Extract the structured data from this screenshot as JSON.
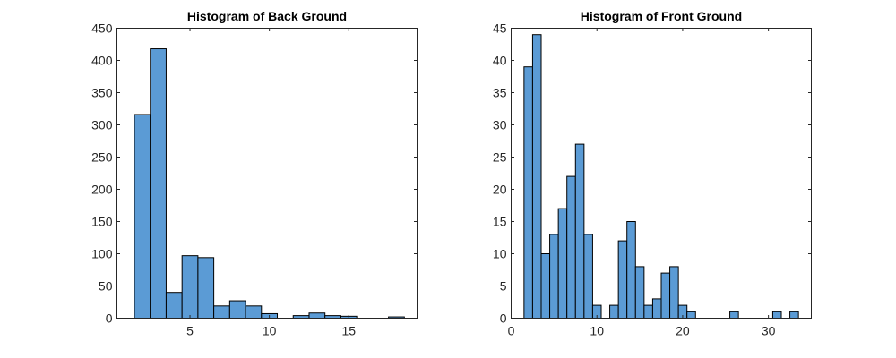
{
  "chart_data": [
    {
      "type": "bar",
      "title": "Histogram of Back Ground",
      "xlabel": "",
      "ylabel": "",
      "xlim": [
        0.4,
        19.3
      ],
      "ylim": [
        0,
        450
      ],
      "grid": false,
      "bar_color": "#5b9bd5",
      "xticks": [
        5,
        10,
        15
      ],
      "yticks": [
        0,
        50,
        100,
        150,
        200,
        250,
        300,
        350,
        400,
        450
      ],
      "bins": [
        {
          "x0": 1.5,
          "x1": 2.5,
          "count": 316
        },
        {
          "x0": 2.5,
          "x1": 3.5,
          "count": 418
        },
        {
          "x0": 3.5,
          "x1": 4.5,
          "count": 40
        },
        {
          "x0": 4.5,
          "x1": 5.5,
          "count": 97
        },
        {
          "x0": 5.5,
          "x1": 6.5,
          "count": 94
        },
        {
          "x0": 6.5,
          "x1": 7.5,
          "count": 19
        },
        {
          "x0": 7.5,
          "x1": 8.5,
          "count": 27
        },
        {
          "x0": 8.5,
          "x1": 9.5,
          "count": 19
        },
        {
          "x0": 9.5,
          "x1": 10.5,
          "count": 7
        },
        {
          "x0": 10.5,
          "x1": 11.5,
          "count": 0
        },
        {
          "x0": 11.5,
          "x1": 12.5,
          "count": 4
        },
        {
          "x0": 12.5,
          "x1": 13.5,
          "count": 8
        },
        {
          "x0": 13.5,
          "x1": 14.5,
          "count": 4
        },
        {
          "x0": 14.5,
          "x1": 15.5,
          "count": 3
        },
        {
          "x0": 15.5,
          "x1": 16.5,
          "count": 0
        },
        {
          "x0": 16.5,
          "x1": 17.5,
          "count": 0
        },
        {
          "x0": 17.5,
          "x1": 18.5,
          "count": 2
        }
      ]
    },
    {
      "type": "bar",
      "title": "Histogram of Front Ground",
      "xlabel": "",
      "ylabel": "",
      "xlim": [
        0,
        35
      ],
      "ylim": [
        0,
        45
      ],
      "grid": false,
      "bar_color": "#5b9bd5",
      "xticks": [
        0,
        10,
        20,
        30
      ],
      "yticks": [
        0,
        5,
        10,
        15,
        20,
        25,
        30,
        35,
        40,
        45
      ],
      "bins": [
        {
          "x0": 1.5,
          "x1": 2.5,
          "count": 39
        },
        {
          "x0": 2.5,
          "x1": 3.5,
          "count": 44
        },
        {
          "x0": 3.5,
          "x1": 4.5,
          "count": 10
        },
        {
          "x0": 4.5,
          "x1": 5.5,
          "count": 13
        },
        {
          "x0": 5.5,
          "x1": 6.5,
          "count": 17
        },
        {
          "x0": 6.5,
          "x1": 7.5,
          "count": 22
        },
        {
          "x0": 7.5,
          "x1": 8.5,
          "count": 27
        },
        {
          "x0": 8.5,
          "x1": 9.5,
          "count": 13
        },
        {
          "x0": 9.5,
          "x1": 10.5,
          "count": 2
        },
        {
          "x0": 10.5,
          "x1": 11.5,
          "count": 0
        },
        {
          "x0": 11.5,
          "x1": 12.5,
          "count": 2
        },
        {
          "x0": 12.5,
          "x1": 13.5,
          "count": 12
        },
        {
          "x0": 13.5,
          "x1": 14.5,
          "count": 15
        },
        {
          "x0": 14.5,
          "x1": 15.5,
          "count": 8
        },
        {
          "x0": 15.5,
          "x1": 16.5,
          "count": 2
        },
        {
          "x0": 16.5,
          "x1": 17.5,
          "count": 3
        },
        {
          "x0": 17.5,
          "x1": 18.5,
          "count": 7
        },
        {
          "x0": 18.5,
          "x1": 19.5,
          "count": 8
        },
        {
          "x0": 19.5,
          "x1": 20.5,
          "count": 2
        },
        {
          "x0": 20.5,
          "x1": 21.5,
          "count": 1
        },
        {
          "x0": 25.5,
          "x1": 26.5,
          "count": 1
        },
        {
          "x0": 30.5,
          "x1": 31.5,
          "count": 1
        },
        {
          "x0": 32.5,
          "x1": 33.5,
          "count": 1
        }
      ]
    }
  ]
}
